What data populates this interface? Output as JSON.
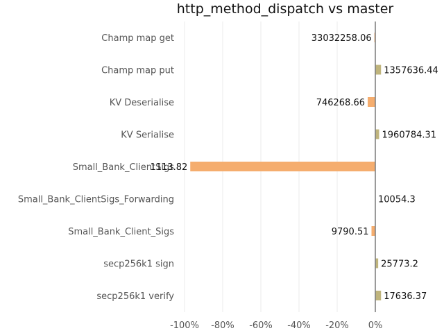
{
  "chart_data": {
    "type": "bar",
    "orientation": "horizontal",
    "title": "http_method_dispatch vs master",
    "xlabel": "",
    "ylabel": "",
    "xlim": [
      -105,
      0
    ],
    "xticks": [
      {
        "value": -100,
        "label": "-100%"
      },
      {
        "value": -80,
        "label": "-80%"
      },
      {
        "value": -60,
        "label": "-60%"
      },
      {
        "value": -40,
        "label": "-40%"
      },
      {
        "value": -20,
        "label": "-20%"
      },
      {
        "value": 0,
        "label": "0%"
      }
    ],
    "grid": "vertical",
    "categories": [
      "Champ map get",
      "Champ map put",
      "KV Deserialise",
      "KV Serialise",
      "Small_Bank_ClientSigs",
      "Small_Bank_ClientSigs_Forwarding",
      "Small_Bank_Client_Sigs",
      "secp256k1 sign",
      "secp256k1 verify"
    ],
    "values": [
      -0.5,
      3.0,
      -4.0,
      2.0,
      -97.0,
      0.0,
      -2.0,
      1.5,
      3.0
    ],
    "value_labels": [
      "33032258.06",
      "1357636.44",
      "746268.66",
      "1960784.31",
      "1113.82",
      "10054.3",
      "9790.51",
      "25773.2",
      "17636.37"
    ],
    "colors": {
      "negative": "#f5ad6e",
      "positive": "#bfb47c",
      "grid": "#ebebeb",
      "zero_line": "#808080"
    }
  }
}
